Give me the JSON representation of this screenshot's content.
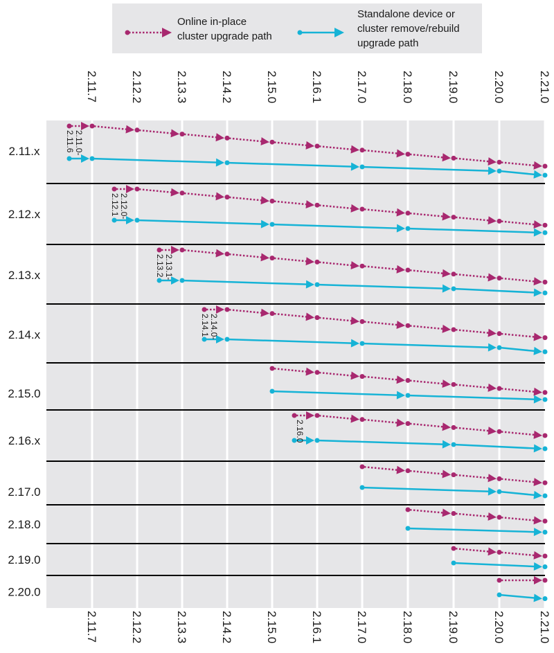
{
  "legend": {
    "online_label": "Online in-place\ncluster upgrade path",
    "standalone_label": "Standalone device or\ncluster remove/rebuild\nupgrade path"
  },
  "colors": {
    "online": "#a8286f",
    "standalone": "#16b3d6",
    "panel": "#e6e6e8",
    "grid": "#ffffff",
    "separator": "#000000"
  },
  "versions": [
    "2.11.7",
    "2.12.2",
    "2.13.3",
    "2.14.2",
    "2.15.0",
    "2.16.1",
    "2.17.0",
    "2.18.0",
    "2.19.0",
    "2.20.0",
    "2.21.0"
  ],
  "groups": [
    {
      "label": "2.11.x",
      "start_label": "2.11.0-\n2.11.6",
      "online": [
        "start",
        "2.11.7",
        "2.12.2",
        "2.13.3",
        "2.14.2",
        "2.15.0",
        "2.16.1",
        "2.17.0",
        "2.18.0",
        "2.19.0",
        "2.20.0",
        "2.21.0"
      ],
      "standalone": [
        "start",
        "2.11.7",
        "2.14.2",
        "2.17.0",
        "2.20.0",
        "2.21.0"
      ]
    },
    {
      "label": "2.12.x",
      "start_label": "2.12.0-\n2.12.1",
      "online": [
        "start",
        "2.12.2",
        "2.13.3",
        "2.14.2",
        "2.15.0",
        "2.16.1",
        "2.17.0",
        "2.18.0",
        "2.19.0",
        "2.20.0",
        "2.21.0"
      ],
      "standalone": [
        "start",
        "2.12.2",
        "2.15.0",
        "2.18.0",
        "2.21.0"
      ]
    },
    {
      "label": "2.13.x",
      "start_label": "2.13.1-\n2.13.2",
      "online": [
        "start",
        "2.13.3",
        "2.14.2",
        "2.15.0",
        "2.16.1",
        "2.17.0",
        "2.18.0",
        "2.19.0",
        "2.20.0",
        "2.21.0"
      ],
      "standalone": [
        "start",
        "2.13.3",
        "2.16.1",
        "2.19.0",
        "2.21.0"
      ]
    },
    {
      "label": "2.14.x",
      "start_label": "2.14.0-\n2.14.1",
      "online": [
        "start",
        "2.14.2",
        "2.15.0",
        "2.16.1",
        "2.17.0",
        "2.18.0",
        "2.19.0",
        "2.20.0",
        "2.21.0"
      ],
      "standalone": [
        "start",
        "2.14.2",
        "2.17.0",
        "2.20.0",
        "2.21.0"
      ]
    },
    {
      "label": "2.15.0",
      "start_label": "",
      "online": [
        "2.15.0",
        "2.16.1",
        "2.17.0",
        "2.18.0",
        "2.19.0",
        "2.20.0",
        "2.21.0"
      ],
      "standalone": [
        "2.15.0",
        "2.18.0",
        "2.21.0"
      ]
    },
    {
      "label": "2.16.x",
      "start_label": "2.16.0",
      "online": [
        "start",
        "2.16.1",
        "2.17.0",
        "2.18.0",
        "2.19.0",
        "2.20.0",
        "2.21.0"
      ],
      "standalone": [
        "start",
        "2.16.1",
        "2.19.0",
        "2.21.0"
      ]
    },
    {
      "label": "2.17.0",
      "start_label": "",
      "online": [
        "2.17.0",
        "2.18.0",
        "2.19.0",
        "2.20.0",
        "2.21.0"
      ],
      "standalone": [
        "2.17.0",
        "2.20.0",
        "2.21.0"
      ]
    },
    {
      "label": "2.18.0",
      "start_label": "",
      "online": [
        "2.18.0",
        "2.19.0",
        "2.20.0",
        "2.21.0"
      ],
      "standalone": [
        "2.18.0",
        "2.21.0"
      ]
    },
    {
      "label": "2.19.0",
      "start_label": "",
      "online": [
        "2.19.0",
        "2.20.0",
        "2.21.0"
      ],
      "standalone": [
        "2.19.0",
        "2.21.0"
      ]
    },
    {
      "label": "2.20.0",
      "start_label": "",
      "online": [
        "2.20.0",
        "2.21.0"
      ],
      "standalone": [
        "2.20.0",
        "2.21.0"
      ]
    }
  ]
}
